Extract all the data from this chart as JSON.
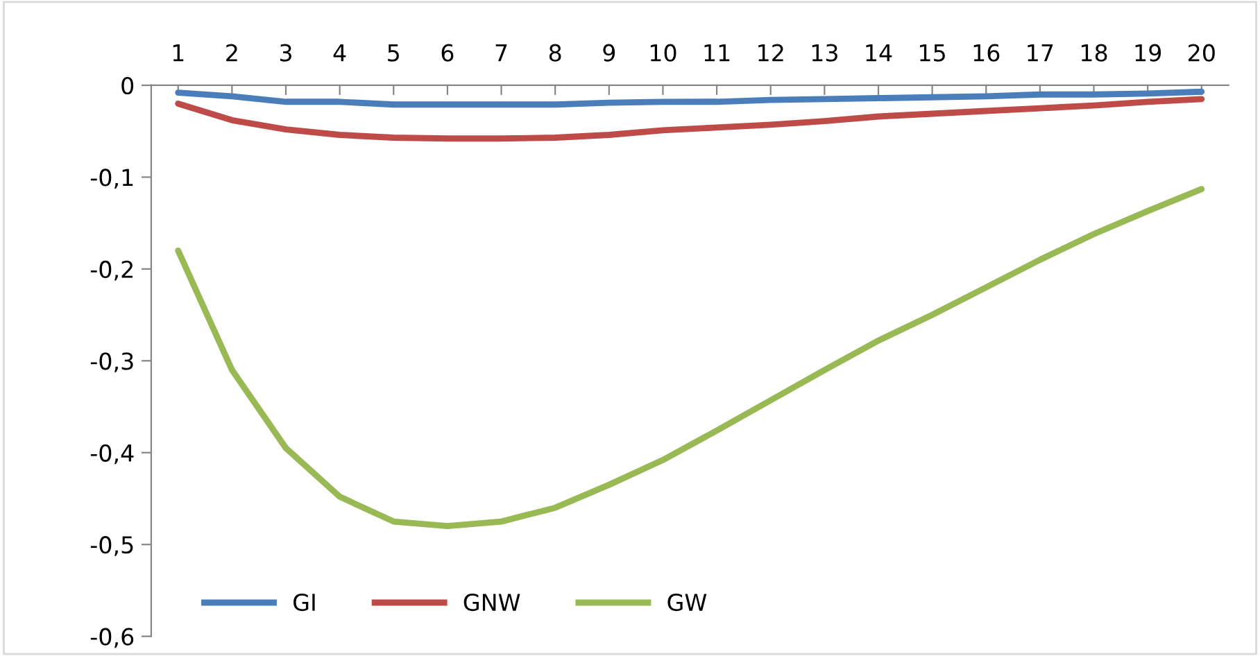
{
  "chart_data": {
    "type": "line",
    "categories": [
      "1",
      "2",
      "3",
      "4",
      "5",
      "6",
      "7",
      "8",
      "9",
      "10",
      "11",
      "12",
      "13",
      "14",
      "15",
      "16",
      "17",
      "18",
      "19",
      "20"
    ],
    "series": [
      {
        "name": "GI",
        "color": "#4a7ebb",
        "values": [
          -0.008,
          -0.012,
          -0.018,
          -0.018,
          -0.021,
          -0.021,
          -0.021,
          -0.021,
          -0.019,
          -0.018,
          -0.018,
          -0.016,
          -0.015,
          -0.014,
          -0.013,
          -0.012,
          -0.01,
          -0.01,
          -0.009,
          -0.007
        ]
      },
      {
        "name": "GNW",
        "color": "#be4b48",
        "values": [
          -0.02,
          -0.038,
          -0.048,
          -0.054,
          -0.057,
          -0.058,
          -0.058,
          -0.057,
          -0.054,
          -0.049,
          -0.046,
          -0.043,
          -0.039,
          -0.034,
          -0.031,
          -0.028,
          -0.025,
          -0.022,
          -0.018,
          -0.015
        ]
      },
      {
        "name": "GW",
        "color": "#98b954",
        "values": [
          -0.18,
          -0.31,
          -0.395,
          -0.448,
          -0.475,
          -0.48,
          -0.475,
          -0.46,
          -0.435,
          -0.408,
          -0.376,
          -0.343,
          -0.31,
          -0.278,
          -0.25,
          -0.22,
          -0.19,
          -0.162,
          -0.137,
          -0.113
        ]
      }
    ],
    "ylim": [
      -0.6,
      0
    ],
    "yticks": [
      {
        "value": 0,
        "label": "0"
      },
      {
        "value": -0.1,
        "label": "-0,1"
      },
      {
        "value": -0.2,
        "label": "-0,2"
      },
      {
        "value": -0.3,
        "label": "-0,3"
      },
      {
        "value": -0.4,
        "label": "-0,4"
      },
      {
        "value": -0.5,
        "label": "-0,5"
      },
      {
        "value": -0.6,
        "label": "-0,6"
      }
    ],
    "grid": false,
    "legend": "bottom left",
    "marker": "none",
    "line_style": "solid"
  }
}
